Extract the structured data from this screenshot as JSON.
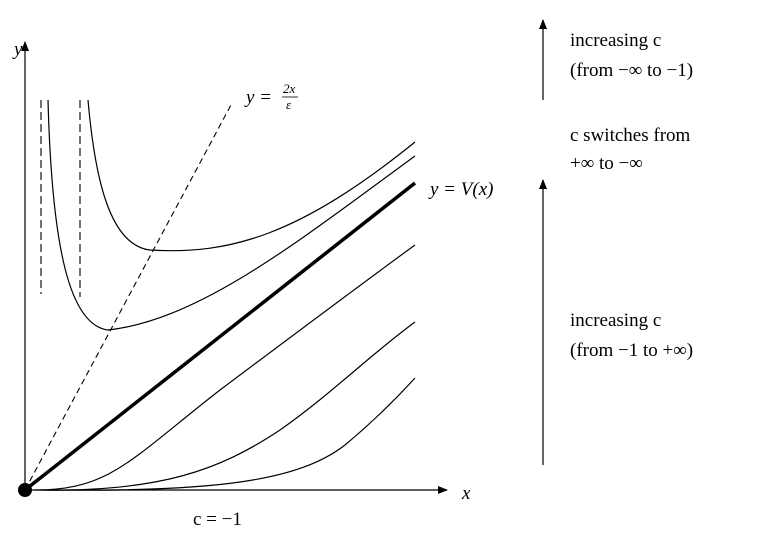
{
  "axes": {
    "x_label": "x",
    "y_label": "y"
  },
  "labels": {
    "line_label": "y =",
    "line_num": "2x",
    "line_den": "ε",
    "potential": "y = V(x)",
    "bottom": "c = −1"
  },
  "annotations": [
    {
      "line1": "increasing c",
      "line2": "(from −∞ to −1)"
    },
    {
      "line1": "c switches from",
      "line2": "+∞ to −∞"
    },
    {
      "line1": "increasing c",
      "line2": "(from −1 to +∞)"
    }
  ]
}
